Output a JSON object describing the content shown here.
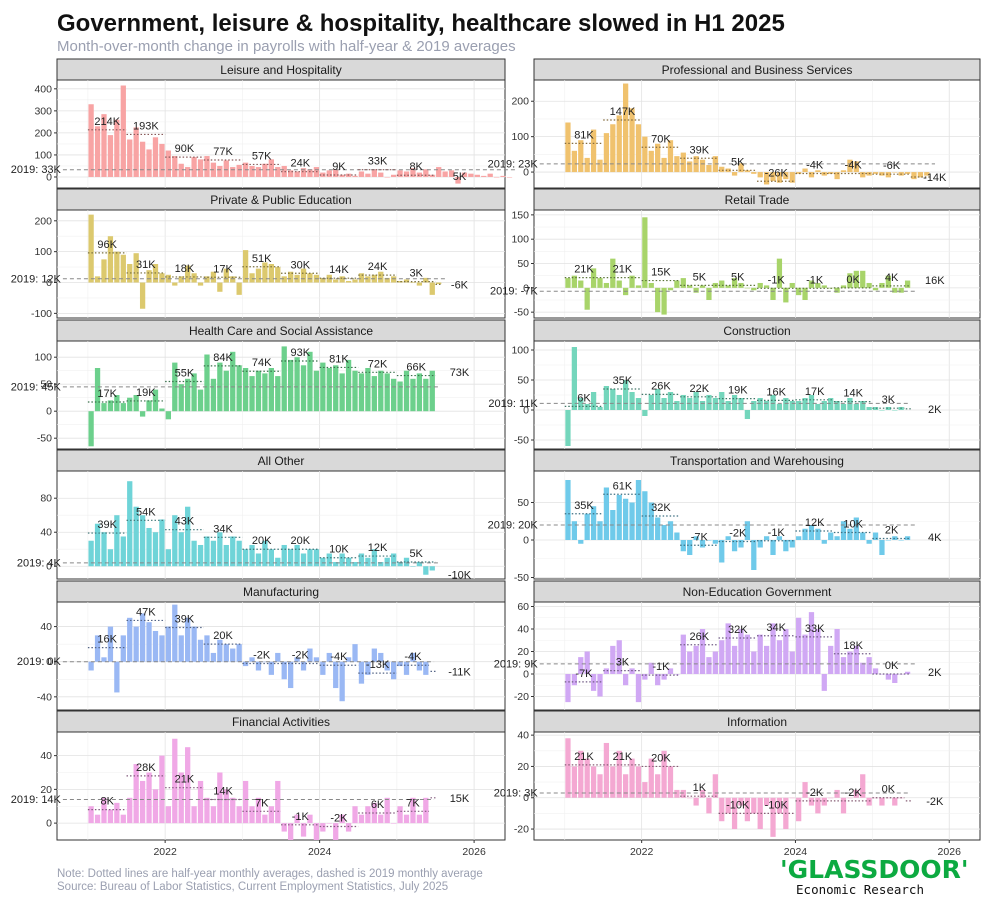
{
  "title": "Government, leisure & hospitality, healthcare slowed in H1 2025",
  "subtitle": "Month-over-month change in payrolls with half-year & 2019 averages",
  "note_line1": "Note: Dotted lines are half-year monthly averages, dashed is 2019 monthly average",
  "note_line2": "Source: Bureau of Labor Statistics, Current Employment Statistics, July 2025",
  "logo": {
    "wordmark": "'GLASSDOOR'",
    "tagline": "Economic Research"
  },
  "chart_data": [
    {
      "type": "bar",
      "panel": "Leisure and Hospitality",
      "color": "#f8a4a4",
      "ylim": [
        -50,
        440
      ],
      "yticks": [
        0,
        100,
        200,
        300,
        400
      ],
      "baseline": 33,
      "baseline_label": "2019: 33K",
      "halves": [
        214,
        193,
        90,
        77,
        57,
        24,
        9,
        33,
        8,
        5
      ],
      "half_labels": [
        "214K",
        "193K",
        "90K",
        "77K",
        "57K",
        "24K",
        "9K",
        "33K",
        "8K",
        "5K"
      ],
      "values": [
        330,
        230,
        285,
        190,
        260,
        415,
        170,
        225,
        160,
        125,
        180,
        150,
        120,
        95,
        60,
        45,
        90,
        80,
        95,
        65,
        50,
        75,
        45,
        55,
        65,
        50,
        45,
        60,
        80,
        45,
        50,
        30,
        25,
        40,
        35,
        45,
        20,
        30,
        35,
        10,
        15,
        5,
        25,
        15,
        35,
        20,
        0,
        10,
        30,
        25,
        40,
        20,
        35,
        10,
        45,
        25,
        30,
        -30,
        20,
        15,
        10,
        5,
        15,
        0,
        5,
        0
      ]
    },
    {
      "type": "bar",
      "panel": "Professional and Business Services",
      "color": "#f0c26e",
      "ylim": [
        -45,
        260
      ],
      "yticks": [
        0,
        100,
        200
      ],
      "baseline": 23,
      "baseline_label": "2019: 23K",
      "halves": [
        81,
        147,
        70,
        39,
        5,
        -26,
        -4,
        -4,
        -6,
        -14
      ],
      "half_labels": [
        "81K",
        "147K",
        "70K",
        "39K",
        "5K",
        "-26K",
        "-4K",
        "-4K",
        "-6K",
        "-14K"
      ],
      "values": [
        140,
        60,
        90,
        40,
        120,
        35,
        110,
        135,
        160,
        250,
        180,
        135,
        100,
        60,
        80,
        40,
        90,
        45,
        55,
        30,
        45,
        35,
        20,
        45,
        15,
        10,
        -10,
        25,
        5,
        -5,
        -15,
        -35,
        -25,
        -30,
        -20,
        -30,
        -5,
        10,
        -15,
        5,
        -10,
        -5,
        -20,
        5,
        35,
        30,
        -15,
        -10,
        -5,
        -10,
        -15,
        0,
        -10,
        -5,
        -20,
        -15,
        -10
      ]
    },
    {
      "type": "bar",
      "panel": "Private & Public Education",
      "color": "#dcc96e",
      "ylim": [
        -115,
        235
      ],
      "yticks": [
        -100,
        0,
        100,
        200
      ],
      "baseline": 12,
      "baseline_label": "2019: 12K",
      "halves": [
        96,
        31,
        18,
        17,
        51,
        30,
        14,
        24,
        3,
        -6
      ],
      "half_labels": [
        "96K",
        "31K",
        "18K",
        "17K",
        "51K",
        "30K",
        "14K",
        "24K",
        "3K",
        "-6K"
      ],
      "values": [
        220,
        20,
        75,
        150,
        100,
        90,
        60,
        95,
        -85,
        40,
        60,
        30,
        25,
        -10,
        20,
        55,
        30,
        -10,
        20,
        35,
        -30,
        45,
        20,
        -40,
        105,
        30,
        45,
        65,
        60,
        50,
        20,
        35,
        25,
        45,
        30,
        25,
        15,
        25,
        10,
        20,
        5,
        10,
        30,
        20,
        25,
        35,
        15,
        20,
        5,
        10,
        0,
        -10,
        15,
        -40,
        -5
      ]
    },
    {
      "type": "bar",
      "panel": "Retail Trade",
      "color": "#a8d46a",
      "ylim": [
        -62,
        160
      ],
      "yticks": [
        -50,
        0,
        50,
        100,
        150
      ],
      "baseline": -7,
      "baseline_label": "2019: -7K",
      "halves": [
        21,
        21,
        15,
        5,
        5,
        -1,
        -1,
        0,
        4,
        16
      ],
      "half_labels": [
        "21K",
        "21K",
        "15K",
        "5K",
        "5K",
        "-1K",
        "-1K",
        "0K",
        "4K",
        "16K"
      ],
      "values": [
        20,
        25,
        15,
        -45,
        40,
        20,
        10,
        60,
        15,
        -15,
        25,
        5,
        145,
        10,
        -50,
        -55,
        -5,
        15,
        20,
        5,
        -10,
        5,
        -25,
        10,
        15,
        5,
        20,
        10,
        0,
        -5,
        10,
        5,
        -25,
        60,
        -30,
        10,
        -15,
        -25,
        15,
        10,
        5,
        0,
        -10,
        5,
        30,
        35,
        35,
        10,
        -5,
        10,
        25,
        -10,
        -10,
        15
      ]
    },
    {
      "type": "bar",
      "panel": "Health Care and Social Assistance",
      "color": "#6cd08c",
      "ylim": [
        -70,
        130
      ],
      "yticks": [
        -50,
        0,
        50,
        100
      ],
      "baseline": 45,
      "baseline_label": "2019: 45K",
      "halves": [
        17,
        19,
        55,
        84,
        74,
        93,
        81,
        72,
        66,
        73
      ],
      "half_labels": [
        "17K",
        "19K",
        "55K",
        "84K",
        "74K",
        "93K",
        "81K",
        "72K",
        "66K",
        "73K"
      ],
      "values": [
        -65,
        80,
        15,
        20,
        30,
        15,
        25,
        30,
        -10,
        20,
        40,
        5,
        -15,
        90,
        50,
        60,
        70,
        40,
        105,
        60,
        90,
        75,
        110,
        85,
        80,
        65,
        75,
        70,
        80,
        65,
        120,
        95,
        100,
        85,
        110,
        75,
        90,
        80,
        85,
        70,
        95,
        75,
        70,
        80,
        65,
        75,
        70,
        60,
        55,
        75,
        60,
        70,
        60,
        75
      ]
    },
    {
      "type": "bar",
      "panel": "Construction",
      "color": "#74d6bc",
      "ylim": [
        -65,
        115
      ],
      "yticks": [
        -50,
        0,
        50,
        100
      ],
      "baseline": 11,
      "baseline_label": "2019: 11K",
      "halves": [
        6,
        35,
        26,
        22,
        19,
        16,
        17,
        14,
        3,
        2
      ],
      "half_labels": [
        "6K",
        "35K",
        "26K",
        "22K",
        "19K",
        "16K",
        "17K",
        "14K",
        "3K",
        "2K"
      ],
      "values": [
        -60,
        105,
        20,
        10,
        30,
        5,
        40,
        35,
        25,
        50,
        30,
        20,
        -10,
        25,
        35,
        20,
        30,
        15,
        25,
        20,
        30,
        15,
        25,
        20,
        30,
        15,
        25,
        20,
        -15,
        15,
        20,
        15,
        25,
        10,
        20,
        15,
        15,
        20,
        25,
        10,
        15,
        20,
        15,
        10,
        20,
        10,
        15,
        5,
        5,
        0,
        5,
        0,
        5
      ]
    },
    {
      "type": "bar",
      "panel": "All Other",
      "color": "#6fd4d8",
      "ylim": [
        -15,
        112
      ],
      "yticks": [
        0,
        40,
        80
      ],
      "baseline": 4,
      "baseline_label": "2019: 4K",
      "halves": [
        39,
        54,
        43,
        34,
        20,
        20,
        10,
        12,
        5,
        -10
      ],
      "half_labels": [
        "39K",
        "54K",
        "43K",
        "34K",
        "20K",
        "20K",
        "10K",
        "12K",
        "5K",
        "-10K"
      ],
      "values": [
        30,
        50,
        40,
        20,
        60,
        35,
        100,
        70,
        60,
        45,
        40,
        55,
        20,
        60,
        40,
        70,
        30,
        25,
        35,
        30,
        40,
        25,
        35,
        30,
        20,
        25,
        15,
        30,
        20,
        10,
        25,
        20,
        25,
        15,
        20,
        20,
        10,
        15,
        5,
        15,
        10,
        5,
        15,
        10,
        20,
        5,
        10,
        15,
        5,
        10,
        0,
        5,
        -10,
        -5
      ]
    },
    {
      "type": "bar",
      "panel": "Transportation and Warehousing",
      "color": "#6fcaea",
      "ylim": [
        -52,
        92
      ],
      "yticks": [
        -50,
        0,
        50
      ],
      "baseline": 20,
      "baseline_label": "2019: 20K",
      "halves": [
        35,
        61,
        32,
        -7,
        -2,
        -1,
        12,
        10,
        2,
        4
      ],
      "half_labels": [
        "35K",
        "61K",
        "32K",
        "-7K",
        "-2K",
        "-1K",
        "12K",
        "10K",
        "2K",
        "4K"
      ],
      "values": [
        80,
        25,
        -5,
        35,
        45,
        25,
        70,
        40,
        60,
        55,
        50,
        80,
        65,
        50,
        30,
        20,
        25,
        10,
        -15,
        -20,
        5,
        -10,
        0,
        -5,
        -30,
        5,
        -15,
        -10,
        25,
        -40,
        -10,
        5,
        -20,
        5,
        -15,
        -10,
        5,
        15,
        20,
        15,
        -5,
        10,
        5,
        25,
        15,
        30,
        10,
        -5,
        10,
        -20,
        0,
        5,
        0,
        5
      ]
    },
    {
      "type": "bar",
      "panel": "Manufacturing",
      "color": "#9ab8f4",
      "ylim": [
        -55,
        68
      ],
      "yticks": [
        -40,
        0,
        40
      ],
      "baseline": 0,
      "baseline_label": "2019: 0K",
      "halves": [
        16,
        47,
        39,
        20,
        -2,
        -2,
        -4,
        -13,
        -4,
        -11
      ],
      "half_labels": [
        "16K",
        "47K",
        "39K",
        "20K",
        "-2K",
        "-2K",
        "-4K",
        "-13K",
        "-4K",
        "-11K"
      ],
      "values": [
        -10,
        30,
        5,
        40,
        -35,
        30,
        50,
        40,
        55,
        45,
        35,
        30,
        40,
        65,
        30,
        50,
        40,
        25,
        30,
        10,
        25,
        20,
        15,
        20,
        -5,
        5,
        -10,
        0,
        -15,
        10,
        -20,
        -30,
        5,
        -10,
        15,
        5,
        -15,
        10,
        -30,
        -45,
        5,
        20,
        -25,
        -15,
        15,
        10,
        -10,
        -20,
        -5,
        -15,
        10,
        -10,
        -15
      ]
    },
    {
      "type": "bar",
      "panel": "Non-Education Government",
      "color": "#d0a8f4",
      "ylim": [
        -32,
        64
      ],
      "yticks": [
        -20,
        0,
        20,
        40,
        60
      ],
      "baseline": 9,
      "baseline_label": "2019: 9K",
      "halves": [
        -7,
        3,
        -1,
        26,
        32,
        34,
        33,
        18,
        0,
        2
      ],
      "half_labels": [
        "-7K",
        "3K",
        "-1K",
        "26K",
        "32K",
        "34K",
        "33K",
        "18K",
        "0K",
        "2K"
      ],
      "values": [
        -25,
        -10,
        15,
        20,
        -15,
        -20,
        5,
        25,
        30,
        -10,
        5,
        -25,
        -5,
        10,
        -10,
        -5,
        5,
        0,
        35,
        20,
        25,
        40,
        15,
        20,
        30,
        45,
        25,
        40,
        35,
        20,
        35,
        25,
        45,
        30,
        40,
        20,
        50,
        35,
        55,
        40,
        -15,
        25,
        40,
        15,
        20,
        25,
        10,
        15,
        5,
        0,
        -5,
        -8,
        0,
        2
      ]
    },
    {
      "type": "bar",
      "panel": "Financial Activities",
      "color": "#f0a8e6",
      "ylim": [
        -10,
        54
      ],
      "yticks": [
        0,
        20,
        40
      ],
      "baseline": 14,
      "baseline_label": "2019: 14K",
      "halves": [
        8,
        28,
        21,
        14,
        7,
        -1,
        -2,
        6,
        7,
        15
      ],
      "half_labels": [
        "8K",
        "28K",
        "21K",
        "14K",
        "7K",
        "-1K",
        "-2K",
        "6K",
        "7K",
        "15K"
      ],
      "values": [
        10,
        5,
        15,
        8,
        12,
        5,
        15,
        35,
        25,
        30,
        20,
        40,
        10,
        50,
        30,
        45,
        10,
        25,
        15,
        10,
        30,
        20,
        15,
        10,
        25,
        10,
        15,
        5,
        10,
        25,
        -5,
        -10,
        5,
        -8,
        5,
        -10,
        -5,
        0,
        -10,
        5,
        -5,
        10,
        5,
        10,
        12,
        5,
        15,
        0,
        10,
        5,
        15,
        5,
        15
      ]
    },
    {
      "type": "bar",
      "panel": "Information",
      "color": "#f4a8d2",
      "ylim": [
        -27,
        42
      ],
      "yticks": [
        -20,
        0,
        20,
        40
      ],
      "baseline": 3,
      "baseline_label": "2019: 3K",
      "halves": [
        21,
        21,
        20,
        1,
        -10,
        -10,
        -2,
        -2,
        0,
        -2
      ],
      "half_labels": [
        "21K",
        "21K",
        "20K",
        "1K",
        "-10K",
        "-10K",
        "-2K",
        "-2K",
        "0K",
        "-2K"
      ],
      "values": [
        38,
        20,
        30,
        25,
        20,
        15,
        35,
        20,
        30,
        15,
        25,
        20,
        10,
        25,
        15,
        30,
        20,
        5,
        5,
        0,
        -5,
        5,
        -10,
        15,
        -15,
        -10,
        -20,
        -5,
        -15,
        -10,
        -20,
        -5,
        -25,
        -10,
        -20,
        0,
        -15,
        10,
        -5,
        -10,
        -5,
        0,
        5,
        -10,
        0,
        5,
        15,
        -5,
        0,
        -5,
        0,
        -5,
        0
      ]
    }
  ],
  "x_axis": {
    "ticks": [
      2022,
      2024,
      2026
    ],
    "range": [
      2020.6,
      2026.4
    ],
    "data_start": 2021.0
  }
}
